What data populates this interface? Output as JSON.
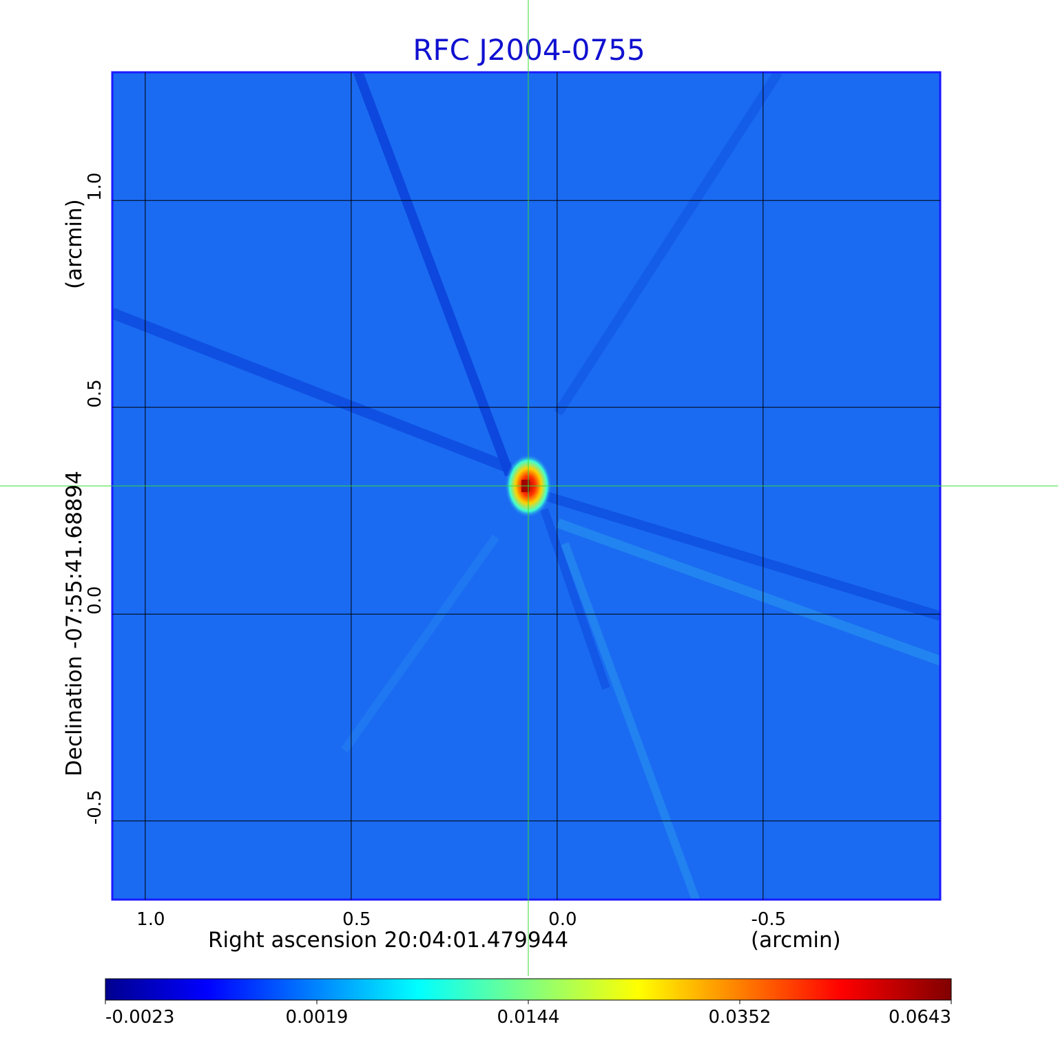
{
  "chart_data": {
    "type": "heatmap",
    "title": "RFC J2004-0755",
    "xlabel": "Right ascension  20:04:01.479944",
    "xunit": "(arcmin)",
    "ylabel": "Declination  -07:55:41.68894",
    "yunit": "(arcmin)",
    "xticks": [
      1.0,
      0.5,
      0.0,
      -0.5
    ],
    "xtick_labels": [
      "1.0",
      "0.5",
      "0.0",
      "-0.5"
    ],
    "yticks": [
      1.0,
      0.5,
      0.0,
      -0.5
    ],
    "ytick_labels": [
      "1.0",
      "0.5",
      "0.0",
      "-0.5"
    ],
    "xlim": [
      1.08,
      -0.93
    ],
    "ylim": [
      -0.69,
      1.31
    ],
    "grid": true,
    "crosshair": {
      "x": 0.07,
      "y": 0.31
    },
    "peak": {
      "x": 0.07,
      "y": 0.31
    },
    "colorbar_ticks": [
      "-0.0023",
      "0.0019",
      "0.0144",
      "0.0352",
      "0.0643"
    ],
    "colormap": "jet"
  },
  "colors": {
    "title": "#1010d0",
    "frame": "#1a1aff",
    "background_map": "#1a6bf2",
    "crosshair": "#33dd33",
    "grid": "#000000"
  }
}
